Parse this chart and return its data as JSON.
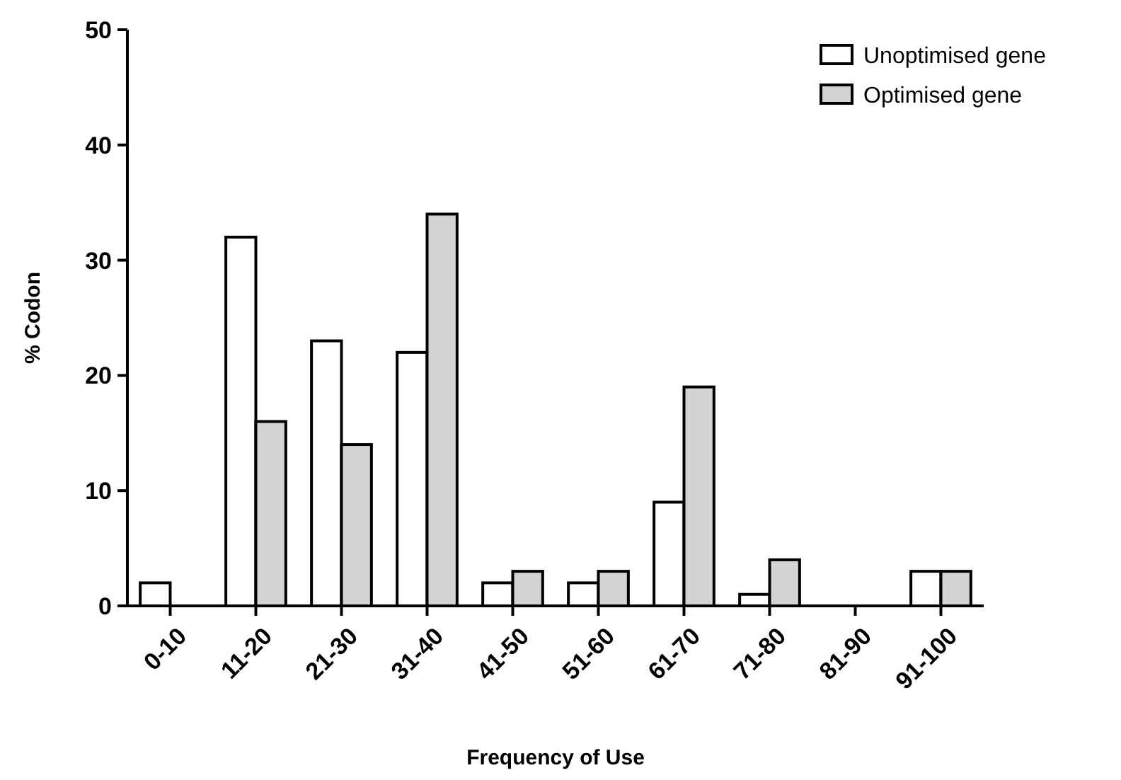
{
  "chart_data": {
    "type": "bar",
    "xlabel": "Frequency of Use",
    "ylabel": "% Codon",
    "categories": [
      "0-10",
      "11-20",
      "21-30",
      "31-40",
      "41-50",
      "51-60",
      "61-70",
      "71-80",
      "81-90",
      "91-100"
    ],
    "series": [
      {
        "name": "Unoptimised gene",
        "color": "#ffffff",
        "values": [
          2,
          32,
          23,
          22,
          2,
          2,
          9,
          1,
          0,
          3
        ]
      },
      {
        "name": "Optimised gene",
        "color": "#d3d3d3",
        "values": [
          0,
          16,
          14,
          34,
          3,
          3,
          19,
          4,
          0,
          3
        ]
      }
    ],
    "ylim": [
      0,
      50
    ],
    "yticks": [
      0,
      10,
      20,
      30,
      40,
      50
    ],
    "grid": false,
    "legend": "top right"
  }
}
